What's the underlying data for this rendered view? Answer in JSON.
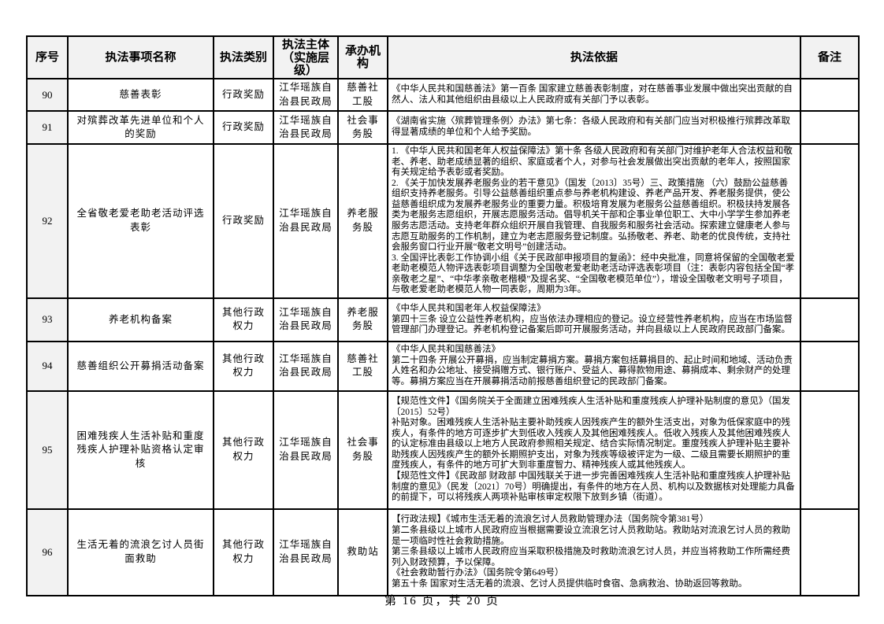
{
  "page": {
    "footer": "第 16 页，共 20 页"
  },
  "table": {
    "headers": [
      {
        "key": "seq",
        "label": "序号"
      },
      {
        "key": "name",
        "label": "执法事项名称"
      },
      {
        "key": "category",
        "label": "执法类别"
      },
      {
        "key": "subject",
        "label": "执法主体（实施层级）"
      },
      {
        "key": "agency",
        "label": "承办机构"
      },
      {
        "key": "basis",
        "label": "执法依据"
      },
      {
        "key": "remark",
        "label": "备注"
      }
    ],
    "rows": [
      {
        "seq": "90",
        "name": "慈善表彰",
        "category": "行政奖励",
        "subject": "江华瑶族自治县民政局",
        "agency": "慈善社工股",
        "basis": "《中华人民共和国慈善法》第一百条 国家建立慈善表彰制度，对在慈善事业发展中做出突出贡献的自然人、法人和其他组织由县级以上人民政府或有关部门予以表彰。",
        "remark": ""
      },
      {
        "seq": "91",
        "name": "对殡葬改革先进单位和个人的奖励",
        "category": "行政奖励",
        "subject": "江华瑶族自治县民政局",
        "agency": "社会事务股",
        "basis": "《湖南省实施〈殡葬管理条例〉办法》第七条：各级人民政府和有关部门应当对积极推行殡葬改革取得显著成绩的单位和个人给予奖励。",
        "remark": ""
      },
      {
        "seq": "92",
        "name": "全省敬老爱老助老活动评选表彰",
        "category": "行政奖励",
        "subject": "江华瑶族自治县民政局",
        "agency": "养老服务股",
        "basis": "1. 《中华人民共和国老年人权益保障法》第十条 各级人民政府和有关部门对维护老年人合法权益和敬老、养老、助老成绩显著的组织、家庭或者个人，对参与社会发展做出突出贡献的老年人，按照国家有关规定给予表彰或者奖励。\n2. 《关于加快发展养老服务业的若干意见》（国发〔2013〕35号）三、政策措施 （六）鼓励公益慈善组织支持养老服务。引导公益慈善组织重点参与养老机构建设、养老产品开发、养老服务提供，使公益慈善组织成为发展养老服务业的重要力量。积极培育发展为老服务公益慈善组织。积极扶持发展各类为老服务志愿组织，开展志愿服务活动。倡导机关干部和企事业单位职工、大中小学学生参加养老服务志愿活动。支持老年群众组织开展自我管理、自我服务和服务社会活动。探索建立健康老人参与志愿互助服务的工作机制，建立为老志愿服务登记制度。弘扬敬老、养老、助老的优良传统，支持社会服务窗口行业开展“敬老文明号”创建活动。\n3. 全国评比表彰工作协调小组《关于民政部申报项目的复函》：经中央批准，同意将保留的全国敬老爱老助老模范人物评选表彰项目调整为全国敬老爱老助老活动评选表彰项目（注：表彰内容包括全国“孝亲敬老之星”、“中华孝亲敬老楷模”及提名奖、“全国敬老模范单位”），增设全国敬老文明号子项目，与敬老爱老助老模范人物一同表彰，周期为3年。",
        "remark": ""
      },
      {
        "seq": "93",
        "name": "养老机构备案",
        "category": "其他行政权力",
        "subject": "江华瑶族自治县民政局",
        "agency": "养老服务股",
        "basis": "《中华人民共和国老年人权益保障法》\n第四十三条 设立公益性养老机构，应当依法办理相应的登记。设立经营性养老机构，应当在市场监督管理部门办理登记。养老机构登记备案后即可开展服务活动，并向县级以上人民政府民政部门备案。",
        "remark": ""
      },
      {
        "seq": "94",
        "name": "慈善组织公开募捐活动备案",
        "category": "其他行政权力",
        "subject": "江华瑶族自治县民政局",
        "agency": "慈善社工股",
        "basis": "《中华人民共和国慈善法》\n第二十四条 开展公开募捐，应当制定募捐方案。募捐方案包括募捐目的、起止时间和地域、活动负责人姓名和办公地址、接受捐赠方式、银行账户、受益人、募得款物用途、募捐成本、剩余财产的处理等。募捐方案应当在开展募捐活动前报慈善组织登记的民政部门备案。",
        "remark": ""
      },
      {
        "seq": "95",
        "name": "困难残疾人生活补贴和重度残疾人护理补贴资格认定审核",
        "category": "其他行政权力",
        "subject": "江华瑶族自治县民政局",
        "agency": "社会事务股",
        "basis": "【规范性文件】《国务院关于全面建立困难残疾人生活补贴和重度残疾人护理补贴制度的意见》（国发〔2015〕52号）\n补贴对象。困难残疾人生活补贴主要补助残疾人因残疾产生的额外生活支出，对象为低保家庭中的残疾人，有条件的地方可逐步扩大到低收入残疾人及其他困难残疾人。低收入残疾人及其他困难残疾人的认定标准由县级以上地方人民政府参照相关规定、结合实际情况制定。重度残疾人护理补贴主要补助残疾人因残疾产生的额外长期照护支出，对象为残疾等级被评定为一级、二级且需要长期照护的重度残疾人，有条件的地方可扩大到非重度智力、精神残疾人或其他残疾人。\n【规范性文件】《民政部 财政部 中国残联关于进一步完善困难残疾人生活补贴和重度残疾人护理补贴制度的意见》（民发〔2021〕70号）明确提出，有条件的地方在人员、机构以及数据核对处理能力具备的前提下，可以将残疾人两项补贴审核审定权限下放到乡镇（街道）。",
        "remark": ""
      },
      {
        "seq": "96",
        "name": "生活无着的流浪乞讨人员街面救助",
        "category": "其他行政权力",
        "subject": "江华瑶族自治县民政局",
        "agency": "救助站",
        "basis": "【行政法规】《城市生活无着的流浪乞讨人员救助管理办法（国务院令第381号）\n第二条县级以上城市人民政府应当根据需要设立流浪乞讨人员救助站。救助站对流浪乞讨人员的救助是一项临时性社会救助措施。\n第三条县级以上城市人民政府应当采取积极措施及时救助流浪乞讨人员，并应当将救助工作所需经费列入财政预算，予以保障。\n《社会救助暂行办法》（国务院令第649号）\n第五十条 国家对生活无着的流浪、乞讨人员提供临时食宿、急病救治、协助返回等救助。",
        "remark": ""
      }
    ]
  }
}
